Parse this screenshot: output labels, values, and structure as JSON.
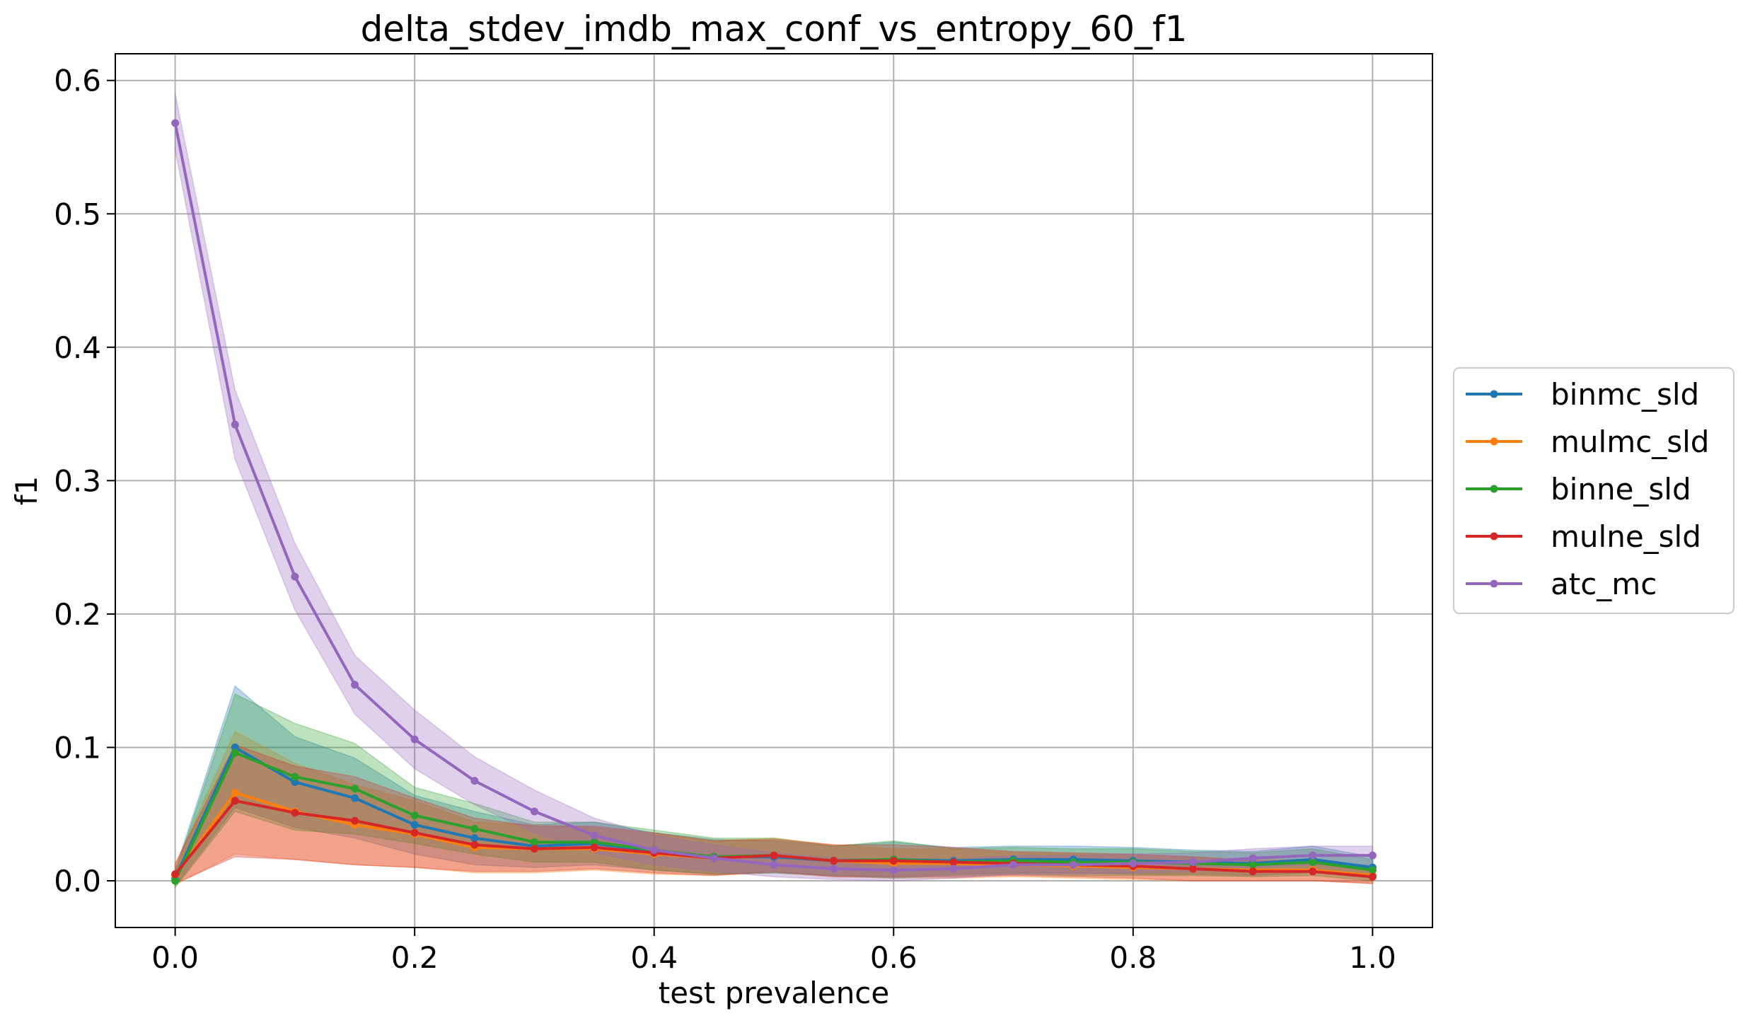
{
  "chart_data": {
    "type": "line",
    "title": "delta_stdev_imdb_max_conf_vs_entropy_60_f1",
    "xlabel": "test prevalence",
    "ylabel": "f1",
    "xlim": [
      -0.05,
      1.05
    ],
    "ylim": [
      -0.035,
      0.62
    ],
    "xticks": [
      0.0,
      0.2,
      0.4,
      0.6,
      0.8,
      1.0
    ],
    "xtick_labels": [
      "0.0",
      "0.2",
      "0.4",
      "0.6",
      "0.8",
      "1.0"
    ],
    "yticks": [
      0.0,
      0.1,
      0.2,
      0.3,
      0.4,
      0.5,
      0.6
    ],
    "ytick_labels": [
      "0.0",
      "0.1",
      "0.2",
      "0.3",
      "0.4",
      "0.5",
      "0.6"
    ],
    "grid": true,
    "legend_position": "outside-right",
    "x": [
      0.0,
      0.05,
      0.1,
      0.15,
      0.2,
      0.25,
      0.3,
      0.35,
      0.4,
      0.45,
      0.5,
      0.55,
      0.6,
      0.65,
      0.7,
      0.75,
      0.8,
      0.85,
      0.9,
      0.95,
      1.0
    ],
    "series": [
      {
        "name": "binmc_sld",
        "color": "#1f77b4",
        "values": [
          0.002,
          0.1,
          0.074,
          0.062,
          0.042,
          0.032,
          0.026,
          0.028,
          0.022,
          0.018,
          0.018,
          0.015,
          0.016,
          0.015,
          0.016,
          0.016,
          0.015,
          0.014,
          0.013,
          0.016,
          0.01
        ],
        "lower": [
          -0.004,
          0.055,
          0.04,
          0.032,
          0.02,
          0.012,
          0.01,
          0.012,
          0.008,
          0.005,
          0.006,
          0.004,
          0.003,
          0.005,
          0.006,
          0.006,
          0.005,
          0.005,
          0.004,
          0.006,
          0.002
        ],
        "upper": [
          0.008,
          0.146,
          0.108,
          0.092,
          0.064,
          0.052,
          0.042,
          0.044,
          0.036,
          0.031,
          0.03,
          0.026,
          0.029,
          0.025,
          0.026,
          0.026,
          0.025,
          0.023,
          0.022,
          0.026,
          0.018
        ]
      },
      {
        "name": "mulmc_sld",
        "color": "#ff7f0e",
        "values": [
          0.004,
          0.066,
          0.052,
          0.042,
          0.035,
          0.025,
          0.024,
          0.024,
          0.02,
          0.017,
          0.019,
          0.015,
          0.013,
          0.013,
          0.012,
          0.011,
          0.01,
          0.009,
          0.008,
          0.008,
          0.004
        ],
        "lower": [
          -0.003,
          0.02,
          0.016,
          0.012,
          0.01,
          0.006,
          0.006,
          0.008,
          0.005,
          0.004,
          0.006,
          0.003,
          0.002,
          0.002,
          0.003,
          0.002,
          0.001,
          0.0,
          0.0,
          0.0,
          -0.002
        ],
        "upper": [
          0.012,
          0.112,
          0.088,
          0.072,
          0.06,
          0.044,
          0.042,
          0.04,
          0.035,
          0.03,
          0.032,
          0.027,
          0.024,
          0.024,
          0.021,
          0.02,
          0.019,
          0.018,
          0.016,
          0.016,
          0.01
        ]
      },
      {
        "name": "binne_sld",
        "color": "#2ca02c",
        "values": [
          0.0,
          0.096,
          0.078,
          0.069,
          0.049,
          0.039,
          0.029,
          0.029,
          0.023,
          0.018,
          0.019,
          0.015,
          0.016,
          0.014,
          0.015,
          0.014,
          0.014,
          0.013,
          0.012,
          0.014,
          0.008
        ],
        "lower": [
          -0.005,
          0.052,
          0.038,
          0.035,
          0.028,
          0.02,
          0.014,
          0.014,
          0.008,
          0.005,
          0.006,
          0.004,
          0.002,
          0.004,
          0.005,
          0.004,
          0.004,
          0.004,
          0.003,
          0.004,
          0.0
        ],
        "upper": [
          0.006,
          0.14,
          0.118,
          0.103,
          0.07,
          0.058,
          0.044,
          0.044,
          0.038,
          0.032,
          0.032,
          0.026,
          0.03,
          0.024,
          0.025,
          0.024,
          0.024,
          0.022,
          0.021,
          0.024,
          0.016
        ]
      },
      {
        "name": "mulne_sld",
        "color": "#d62728",
        "values": [
          0.005,
          0.06,
          0.051,
          0.045,
          0.036,
          0.027,
          0.024,
          0.025,
          0.021,
          0.017,
          0.019,
          0.015,
          0.015,
          0.014,
          0.013,
          0.012,
          0.011,
          0.009,
          0.007,
          0.007,
          0.003
        ],
        "lower": [
          -0.002,
          0.018,
          0.016,
          0.012,
          0.01,
          0.007,
          0.007,
          0.009,
          0.006,
          0.004,
          0.007,
          0.003,
          0.003,
          0.003,
          0.004,
          0.003,
          0.002,
          0.0,
          0.0,
          0.0,
          -0.002
        ],
        "upper": [
          0.013,
          0.102,
          0.086,
          0.078,
          0.062,
          0.047,
          0.041,
          0.041,
          0.036,
          0.03,
          0.031,
          0.027,
          0.027,
          0.025,
          0.022,
          0.021,
          0.02,
          0.018,
          0.015,
          0.015,
          0.009
        ]
      },
      {
        "name": "atc_mc",
        "color": "#9467bd",
        "values": [
          0.568,
          0.342,
          0.228,
          0.147,
          0.106,
          0.075,
          0.052,
          0.034,
          0.023,
          0.017,
          0.012,
          0.009,
          0.008,
          0.009,
          0.012,
          0.012,
          0.013,
          0.014,
          0.017,
          0.019,
          0.019
        ],
        "lower": [
          0.548,
          0.316,
          0.203,
          0.125,
          0.084,
          0.057,
          0.036,
          0.021,
          0.012,
          0.007,
          0.003,
          0.001,
          0.0,
          0.002,
          0.005,
          0.005,
          0.006,
          0.007,
          0.01,
          0.012,
          0.012
        ],
        "upper": [
          0.59,
          0.368,
          0.253,
          0.169,
          0.128,
          0.093,
          0.068,
          0.047,
          0.034,
          0.027,
          0.021,
          0.017,
          0.016,
          0.016,
          0.019,
          0.019,
          0.02,
          0.021,
          0.024,
          0.026,
          0.026
        ]
      }
    ]
  }
}
